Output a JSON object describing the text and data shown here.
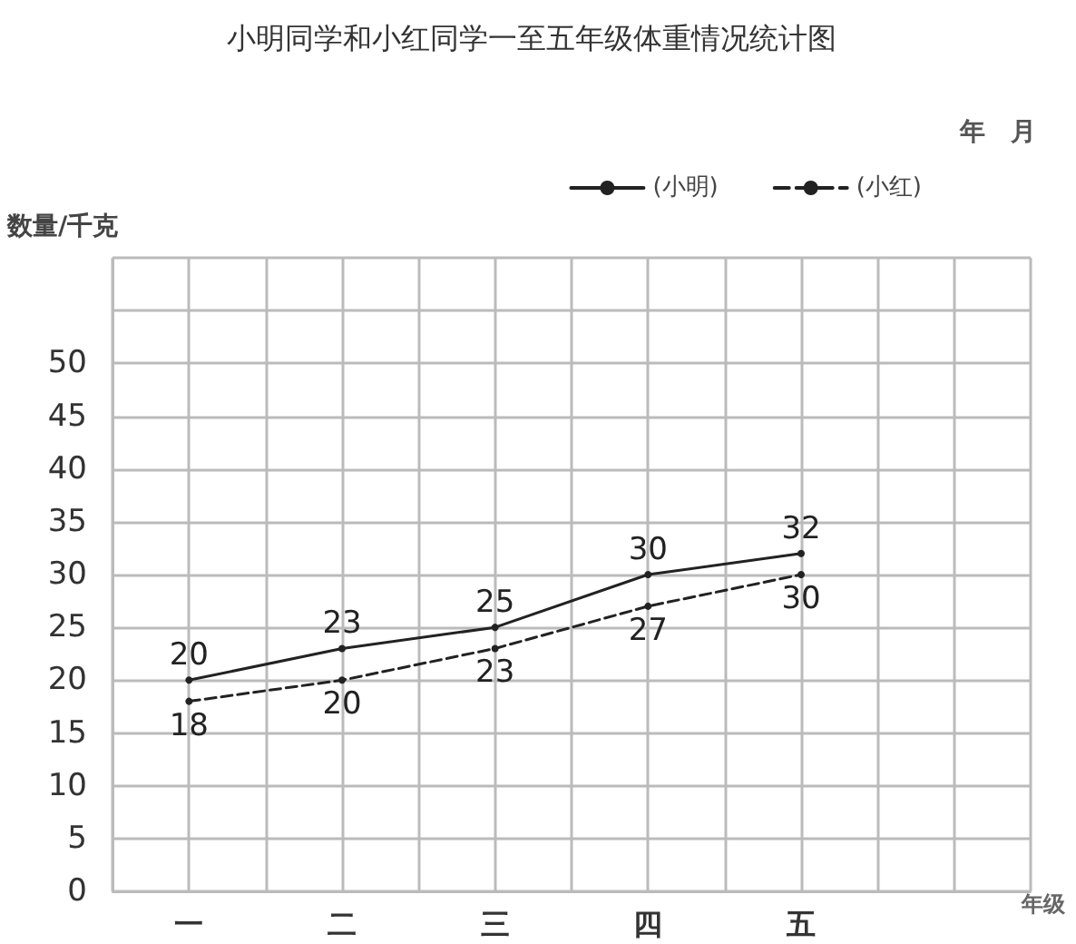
{
  "chart_data": {
    "type": "line",
    "title": "小明同学和小红同学一至五年级体重情况统计图",
    "annotations": [
      "年　月"
    ],
    "xlabel": "年级",
    "ylabel": "数量/千克",
    "categories": [
      "一",
      "二",
      "三",
      "四",
      "五",
      null
    ],
    "series": [
      {
        "name": "(小明)",
        "color": "#222222",
        "line_style": "solid",
        "values": [
          20,
          23,
          25,
          30,
          32,
          null
        ]
      },
      {
        "name": "(小红)",
        "color": "#222222",
        "line_style": "dashed",
        "values": [
          18,
          20,
          23,
          27,
          30,
          null
        ]
      }
    ],
    "ylim": [
      0,
      60
    ],
    "yticks": [
      0,
      5,
      10,
      15,
      20,
      25,
      30,
      35,
      40,
      45,
      50,
      {
        "value": 55,
        "label": null
      },
      {
        "value": 60,
        "label": null
      }
    ],
    "data_labels": true,
    "grid": true,
    "legend": "top right",
    "marker": "circle"
  }
}
